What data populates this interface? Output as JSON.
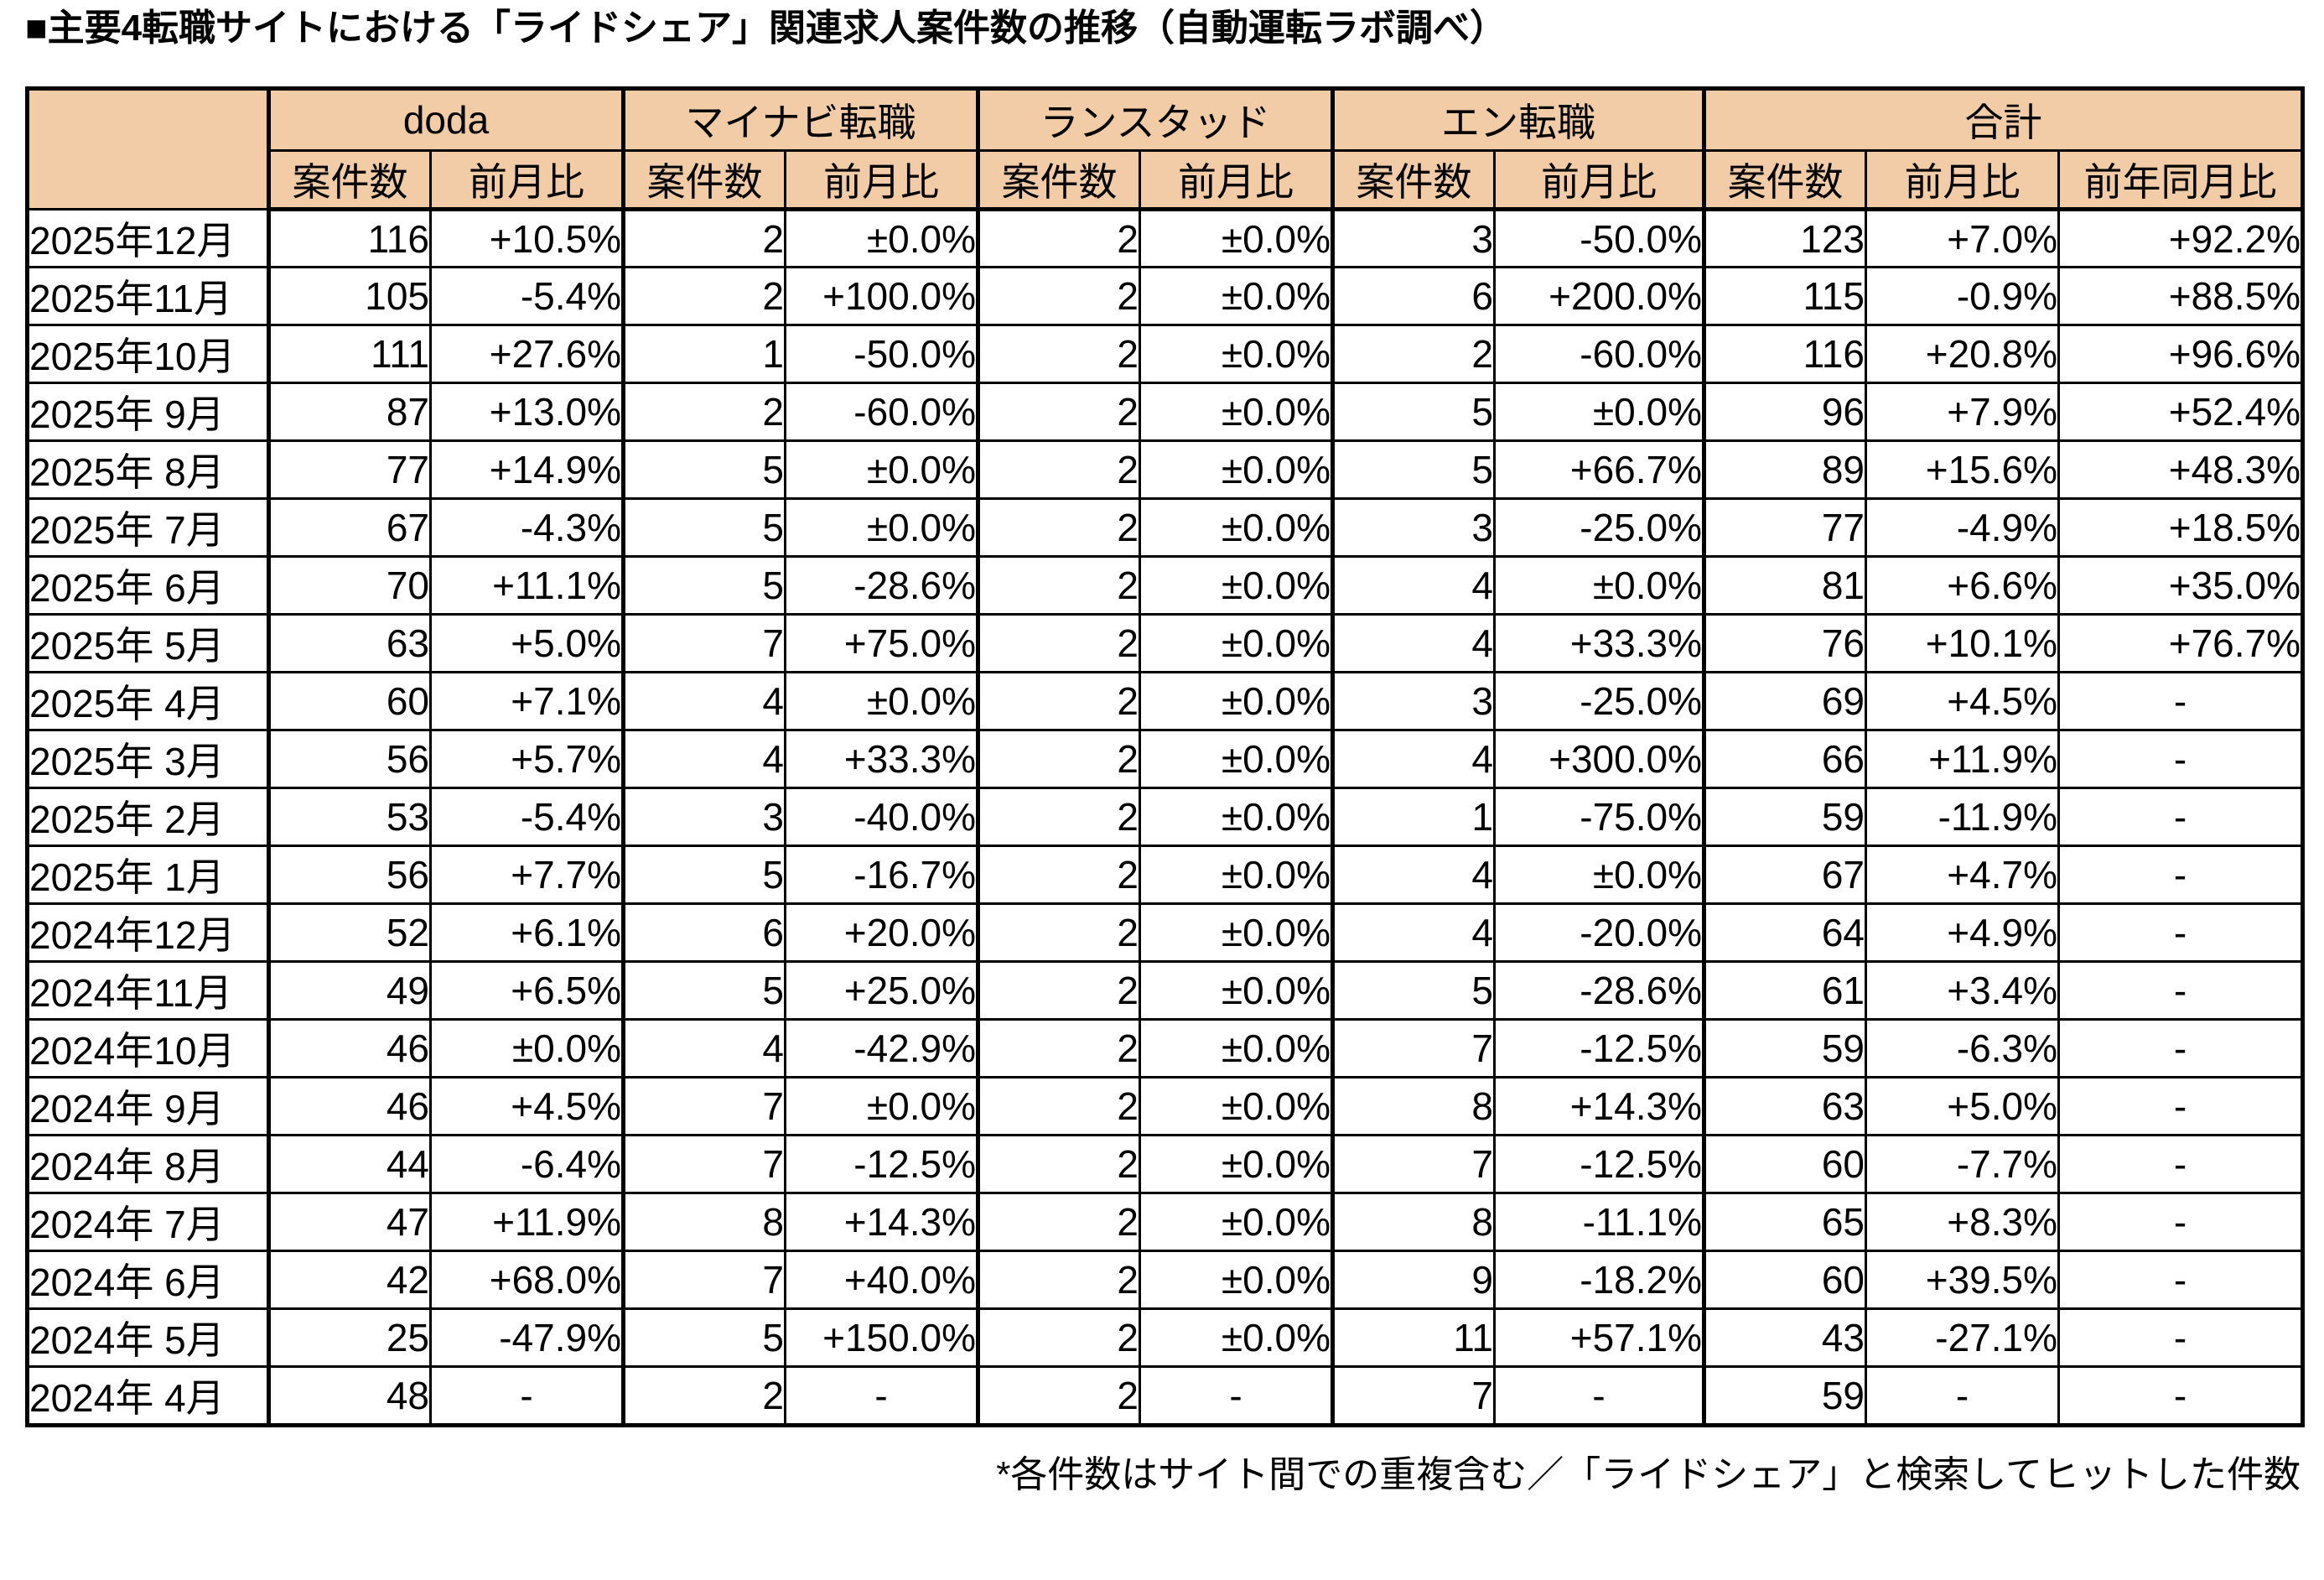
{
  "title": "■主要4転職サイトにおける「ライドシェア」関連求人案件数の推移（自動運転ラボ調べ）",
  "footnote": "*各件数はサイト間での重複含む／「ライドシェア」と検索してヒットした件数",
  "colors": {
    "header_bg": "#F2CBA7",
    "border": "#000000",
    "text": "#000000",
    "background": "#FFFFFF"
  },
  "table": {
    "corner_label": "",
    "groups": [
      {
        "label": "doda",
        "columns": [
          "案件数",
          "前月比"
        ]
      },
      {
        "label": "マイナビ転職",
        "columns": [
          "案件数",
          "前月比"
        ]
      },
      {
        "label": "ランスタッド",
        "columns": [
          "案件数",
          "前月比"
        ]
      },
      {
        "label": "エン転職",
        "columns": [
          "案件数",
          "前月比"
        ]
      },
      {
        "label": "合計",
        "columns": [
          "案件数",
          "前月比",
          "前年同月比"
        ]
      }
    ],
    "rows": [
      {
        "month": "2025年12月",
        "cells": [
          "116",
          "+10.5%",
          "2",
          "±0.0%",
          "2",
          "±0.0%",
          "3",
          "-50.0%",
          "123",
          "+7.0%",
          "+92.2%"
        ]
      },
      {
        "month": "2025年11月",
        "cells": [
          "105",
          "-5.4%",
          "2",
          "+100.0%",
          "2",
          "±0.0%",
          "6",
          "+200.0%",
          "115",
          "-0.9%",
          "+88.5%"
        ]
      },
      {
        "month": "2025年10月",
        "cells": [
          "111",
          "+27.6%",
          "1",
          "-50.0%",
          "2",
          "±0.0%",
          "2",
          "-60.0%",
          "116",
          "+20.8%",
          "+96.6%"
        ]
      },
      {
        "month": "2025年 9月",
        "cells": [
          "87",
          "+13.0%",
          "2",
          "-60.0%",
          "2",
          "±0.0%",
          "5",
          "±0.0%",
          "96",
          "+7.9%",
          "+52.4%"
        ]
      },
      {
        "month": "2025年 8月",
        "cells": [
          "77",
          "+14.9%",
          "5",
          "±0.0%",
          "2",
          "±0.0%",
          "5",
          "+66.7%",
          "89",
          "+15.6%",
          "+48.3%"
        ]
      },
      {
        "month": "2025年 7月",
        "cells": [
          "67",
          "-4.3%",
          "5",
          "±0.0%",
          "2",
          "±0.0%",
          "3",
          "-25.0%",
          "77",
          "-4.9%",
          "+18.5%"
        ]
      },
      {
        "month": "2025年 6月",
        "cells": [
          "70",
          "+11.1%",
          "5",
          "-28.6%",
          "2",
          "±0.0%",
          "4",
          "±0.0%",
          "81",
          "+6.6%",
          "+35.0%"
        ]
      },
      {
        "month": "2025年 5月",
        "cells": [
          "63",
          "+5.0%",
          "7",
          "+75.0%",
          "2",
          "±0.0%",
          "4",
          "+33.3%",
          "76",
          "+10.1%",
          "+76.7%"
        ]
      },
      {
        "month": "2025年 4月",
        "cells": [
          "60",
          "+7.1%",
          "4",
          "±0.0%",
          "2",
          "±0.0%",
          "3",
          "-25.0%",
          "69",
          "+4.5%",
          "-"
        ]
      },
      {
        "month": "2025年 3月",
        "cells": [
          "56",
          "+5.7%",
          "4",
          "+33.3%",
          "2",
          "±0.0%",
          "4",
          "+300.0%",
          "66",
          "+11.9%",
          "-"
        ]
      },
      {
        "month": "2025年 2月",
        "cells": [
          "53",
          "-5.4%",
          "3",
          "-40.0%",
          "2",
          "±0.0%",
          "1",
          "-75.0%",
          "59",
          "-11.9%",
          "-"
        ]
      },
      {
        "month": "2025年 1月",
        "cells": [
          "56",
          "+7.7%",
          "5",
          "-16.7%",
          "2",
          "±0.0%",
          "4",
          "±0.0%",
          "67",
          "+4.7%",
          "-"
        ]
      },
      {
        "month": "2024年12月",
        "cells": [
          "52",
          "+6.1%",
          "6",
          "+20.0%",
          "2",
          "±0.0%",
          "4",
          "-20.0%",
          "64",
          "+4.9%",
          "-"
        ]
      },
      {
        "month": "2024年11月",
        "cells": [
          "49",
          "+6.5%",
          "5",
          "+25.0%",
          "2",
          "±0.0%",
          "5",
          "-28.6%",
          "61",
          "+3.4%",
          "-"
        ]
      },
      {
        "month": "2024年10月",
        "cells": [
          "46",
          "±0.0%",
          "4",
          "-42.9%",
          "2",
          "±0.0%",
          "7",
          "-12.5%",
          "59",
          "-6.3%",
          "-"
        ]
      },
      {
        "month": "2024年 9月",
        "cells": [
          "46",
          "+4.5%",
          "7",
          "±0.0%",
          "2",
          "±0.0%",
          "8",
          "+14.3%",
          "63",
          "+5.0%",
          "-"
        ]
      },
      {
        "month": "2024年 8月",
        "cells": [
          "44",
          "-6.4%",
          "7",
          "-12.5%",
          "2",
          "±0.0%",
          "7",
          "-12.5%",
          "60",
          "-7.7%",
          "-"
        ]
      },
      {
        "month": "2024年 7月",
        "cells": [
          "47",
          "+11.9%",
          "8",
          "+14.3%",
          "2",
          "±0.0%",
          "8",
          "-11.1%",
          "65",
          "+8.3%",
          "-"
        ]
      },
      {
        "month": "2024年 6月",
        "cells": [
          "42",
          "+68.0%",
          "7",
          "+40.0%",
          "2",
          "±0.0%",
          "9",
          "-18.2%",
          "60",
          "+39.5%",
          "-"
        ]
      },
      {
        "month": "2024年 5月",
        "cells": [
          "25",
          "-47.9%",
          "5",
          "+150.0%",
          "2",
          "±0.0%",
          "11",
          "+57.1%",
          "43",
          "-27.1%",
          "-"
        ]
      },
      {
        "month": "2024年 4月",
        "cells": [
          "48",
          "-",
          "2",
          "-",
          "2",
          "-",
          "7",
          "-",
          "59",
          "-",
          "-"
        ]
      }
    ]
  }
}
